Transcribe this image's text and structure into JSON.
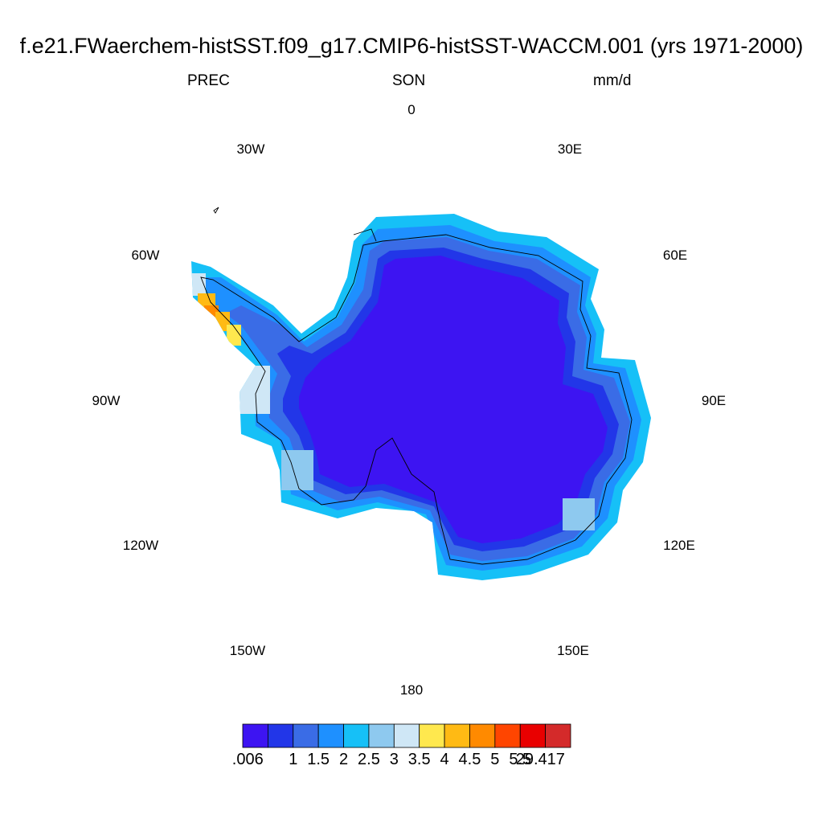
{
  "title": "f.e21.FWaerchem-histSST.f09_g17.CMIP6-histSST-WACCM.001 (yrs 1971-2000)",
  "subtitle": {
    "left": "PREC",
    "center": "SON",
    "right": "mm/d"
  },
  "longitude_labels": [
    "0",
    "30E",
    "60E",
    "90E",
    "120E",
    "150E",
    "180",
    "150W",
    "120W",
    "90W",
    "60W",
    "30W"
  ],
  "colorbar": {
    "labels": [
      ".006",
      "1",
      "1.5",
      "2",
      "2.5",
      "3",
      "3.5",
      "4",
      "4.5",
      "5",
      "5.5",
      "29.417"
    ],
    "colors": [
      "#3d14f2",
      "#2236e8",
      "#3a6ce6",
      "#1e90ff",
      "#16c0f7",
      "#8ec9ef",
      "#cfe7f6",
      "#ffe84e",
      "#ffba14",
      "#ff8a00",
      "#ff4500",
      "#e90000",
      "#d42a2a"
    ]
  },
  "map": {
    "projection": "south polar stereographic",
    "field": "PREC",
    "region": "Antarctica",
    "interior_value_mm_d": 0.5,
    "coastal_range_mm_d": [
      1,
      3.5
    ],
    "peninsula_max_mm_d": 5
  }
}
